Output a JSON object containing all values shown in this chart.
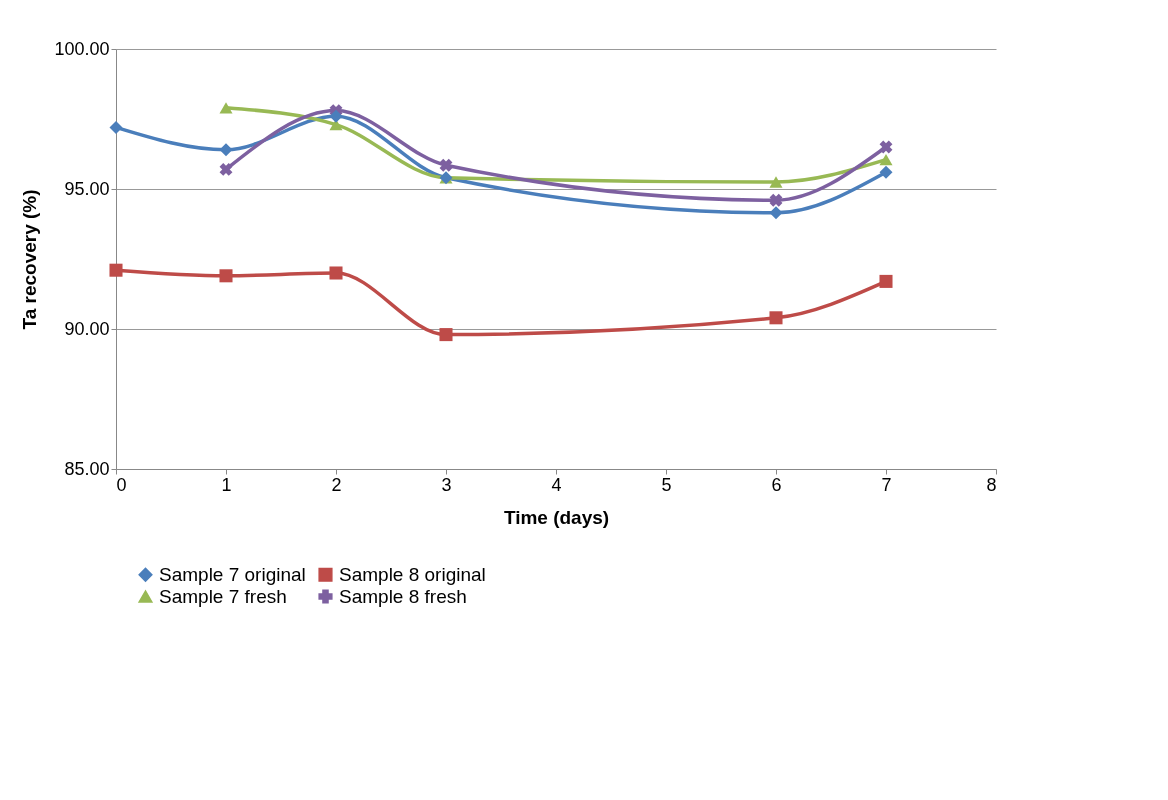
{
  "chart_data": {
    "type": "line",
    "xlabel": "Time (days)",
    "ylabel": "Ta recovery (%)",
    "x": [
      0,
      1,
      2,
      3,
      6,
      7
    ],
    "series": [
      {
        "name": "Sample 7 original",
        "color": "#4a7ebb",
        "marker": "diamond",
        "values": [
          97.2,
          96.4,
          97.6,
          95.4,
          94.15,
          95.6
        ]
      },
      {
        "name": "Sample 8 original",
        "color": "#be4b48",
        "marker": "square",
        "values": [
          92.1,
          91.9,
          92.0,
          89.8,
          90.4,
          91.7
        ]
      },
      {
        "name": "Sample 7 fresh",
        "color": "#98b954",
        "marker": "triangle",
        "values": [
          null,
          97.9,
          97.3,
          95.4,
          95.25,
          96.05
        ]
      },
      {
        "name": "Sample 8 fresh",
        "color": "#7d60a0",
        "marker": "cross",
        "values": [
          null,
          95.7,
          97.8,
          95.85,
          94.6,
          96.5
        ]
      }
    ],
    "xlim": [
      0,
      8
    ],
    "xticks": [
      0,
      1,
      2,
      3,
      4,
      5,
      6,
      7,
      8
    ],
    "ylim": [
      85,
      100
    ],
    "yticks": [
      {
        "value": 85,
        "label": "85.00"
      },
      {
        "value": 90,
        "label": "90.00"
      },
      {
        "value": 95,
        "label": "95.00"
      },
      {
        "value": 100,
        "label": "100.00"
      }
    ],
    "grid": "y",
    "legend": "bottom",
    "line_style": "solid"
  }
}
